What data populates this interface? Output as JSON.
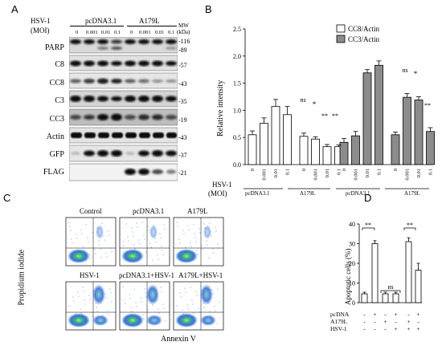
{
  "panelA": {
    "letter": "A",
    "hsv_label": "HSV-1",
    "moi_label": "(MOI)",
    "groups": [
      "pcDNA3.1",
      "A179L"
    ],
    "moi_values": [
      "0",
      "0.001",
      "0.01",
      "0.1",
      "0",
      "0.001",
      "0.01",
      "0.1"
    ],
    "mw_header": "MW",
    "mw_unit": "(kDa)",
    "blots": [
      {
        "label": "PARP",
        "mw": [
          "-116",
          "-89"
        ]
      },
      {
        "label": "C8",
        "mw": [
          "-57"
        ]
      },
      {
        "label": "CC8",
        "mw": [
          "-43"
        ]
      },
      {
        "label": "C3",
        "mw": [
          "-35"
        ]
      },
      {
        "label": "CC3",
        "mw": [
          "-19"
        ]
      },
      {
        "label": "Actin",
        "mw": [
          "-43"
        ]
      },
      {
        "label": "GFP",
        "mw": [
          "-37"
        ]
      },
      {
        "label": "FLAG",
        "mw": [
          "-21"
        ]
      }
    ]
  },
  "panelB": {
    "letter": "B",
    "legend": [
      "CC8/Actin",
      "CC3/Actin"
    ],
    "ylabel": "Relative intensity",
    "yticks": [
      "0.0",
      "0.5",
      "1.0",
      "1.5",
      "2.0",
      "2.5"
    ],
    "hsv_label": "HSV-1",
    "moi_label": "(MOI)",
    "group_labels": [
      "pcDNA3.1",
      "A179L",
      "pcDNA3.1",
      "A179L"
    ],
    "annotations": [
      "ns",
      "*",
      "**",
      "**",
      "ns",
      "*",
      "**"
    ]
  },
  "panelC": {
    "letter": "C",
    "titles": [
      "Control",
      "pcDNA3.1",
      "A179L",
      "HSV-1",
      "pcDNA3.1+HSV-1",
      "A179L+HSV-1"
    ],
    "ylabel": "Propidium iodide",
    "xlabel": "Annexin V"
  },
  "panelD": {
    "letter": "D",
    "ylabel": "Apoptotic cells (%)",
    "yticks": [
      "0",
      "10",
      "20",
      "30",
      "40"
    ],
    "annotations": [
      "**",
      "ns",
      "**"
    ],
    "row_labels": [
      "pcDNA",
      "A179L",
      "HSV-1"
    ],
    "row_signs": [
      [
        "-",
        "+",
        "-",
        "+",
        "-",
        "+"
      ],
      [
        "-",
        "-",
        "+",
        "-",
        "+",
        "-"
      ],
      [
        "-",
        "-",
        "-",
        "+",
        "+",
        "+"
      ]
    ]
  },
  "chart_data": [
    {
      "type": "bar",
      "panel": "B",
      "ylabel": "Relative intensity",
      "ylim": [
        0,
        2.5
      ],
      "categories": [
        "0",
        "0.001",
        "0.01",
        "0.1",
        "0",
        "0.001",
        "0.01",
        "0.1"
      ],
      "series": [
        {
          "name": "CC8/Actin",
          "values": [
            0.55,
            0.76,
            1.07,
            0.92,
            0.52,
            0.47,
            0.33,
            0.33
          ],
          "errors": [
            0.07,
            0.1,
            0.13,
            0.15,
            0.06,
            0.04,
            0.04,
            0.03
          ]
        },
        {
          "name": "CC3/Actin",
          "values": [
            0.41,
            0.53,
            1.69,
            1.83,
            0.55,
            1.24,
            1.19,
            0.61
          ],
          "errors": [
            0.07,
            0.08,
            0.06,
            0.08,
            0.05,
            0.07,
            0.06,
            0.07
          ]
        }
      ],
      "legend_position": "top-right",
      "grid": false
    },
    {
      "type": "bar",
      "panel": "D",
      "ylabel": "Apoptotic cells (%)",
      "ylim": [
        0,
        40
      ],
      "values": [
        4.5,
        30,
        4.5,
        4.5,
        31,
        16.5
      ],
      "errors": [
        0.8,
        1.5,
        0.8,
        0.8,
        2,
        3.5
      ],
      "grid": false
    }
  ]
}
